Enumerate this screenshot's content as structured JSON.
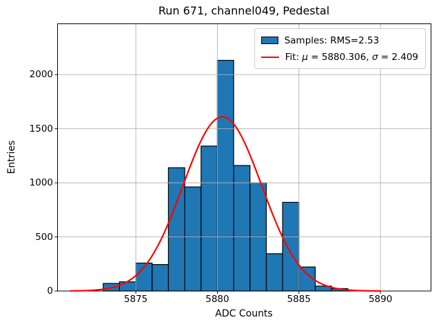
{
  "title": "Run 671, channel049, Pedestal",
  "x_axis": {
    "label": "ADC Counts",
    "tick_labels": [
      "5875",
      "5880",
      "5885",
      "5890"
    ]
  },
  "y_axis": {
    "label": "Entries",
    "tick_labels": [
      "0",
      "500",
      "1000",
      "1500",
      "2000"
    ]
  },
  "legend": {
    "samples": {
      "label": "Samples: RMS=2.53",
      "swatch_color": "#1f77b4",
      "swatch_edge_color": "#000000"
    },
    "fit": {
      "prefix": "Fit: ",
      "mu_symbol": "μ",
      "mu_value": " = 5880.306, ",
      "sigma_symbol": "σ",
      "sigma_value": " = 2.409",
      "line_color": "#ff0000"
    }
  },
  "chart_data": {
    "type": "bar",
    "subtype": "histogram-with-gaussian-fit",
    "title": "Run 671, channel049, Pedestal",
    "xlabel": "ADC Counts",
    "ylabel": "Entries",
    "bin_edges": [
      5873,
      5874,
      5875,
      5876,
      5877,
      5878,
      5879,
      5880,
      5881,
      5882,
      5883,
      5884,
      5885,
      5886,
      5887,
      5888
    ],
    "counts": [
      70,
      85,
      258,
      245,
      1140,
      962,
      1340,
      2132,
      1160,
      1000,
      345,
      820,
      222,
      45,
      22
    ],
    "xlim": [
      5870.2,
      5893.1
    ],
    "ylim": [
      0,
      2470
    ],
    "xticks": [
      5875,
      5880,
      5885,
      5890
    ],
    "yticks": [
      0,
      500,
      1000,
      1500,
      2000
    ],
    "grid": true,
    "grid_color": "#b0b0b0",
    "legend_position": "upper right",
    "bar_color": "#1f77b4",
    "bar_edge_color": "#000000",
    "fit_curve": {
      "shape": "gaussian",
      "mu": 5880.306,
      "sigma": 2.409,
      "amplitude": 1610,
      "color": "#ff0000",
      "x_range": [
        5871.0,
        5890.05
      ]
    },
    "stats": {
      "samples_rms": 2.53,
      "fit_mu": 5880.306,
      "fit_sigma": 2.409
    }
  }
}
